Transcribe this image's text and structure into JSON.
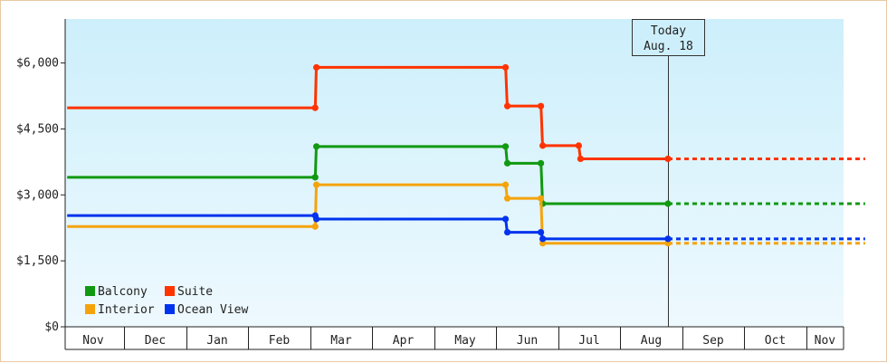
{
  "chart_data": {
    "type": "line",
    "step": true,
    "title": "",
    "xlabel": "",
    "ylabel": "",
    "y_ticks": [
      0,
      1500,
      3000,
      4500,
      6000
    ],
    "y_tick_labels": [
      "$0",
      "$1,500",
      "$3,000",
      "$4,500",
      "$6,000"
    ],
    "ylim": [
      0,
      7000
    ],
    "x_ticks": [
      "Nov",
      "Dec",
      "Jan",
      "Feb",
      "Mar",
      "Apr",
      "May",
      "Jun",
      "Jul",
      "Aug",
      "Sep",
      "Oct",
      "Nov"
    ],
    "today": {
      "line1": "Today",
      "line2": "Aug. 18",
      "x": 9.27
    },
    "legend_position": "bottom-left",
    "background": {
      "top": "#cdeffb",
      "bottom": "#eef9fe"
    },
    "series": [
      {
        "name": "Balcony",
        "color": "#119911",
        "points": [
          [
            -0.42,
            3400
          ],
          [
            3.58,
            3400
          ],
          [
            3.6,
            4100
          ],
          [
            6.65,
            4100
          ],
          [
            6.68,
            3720
          ],
          [
            7.22,
            3720
          ],
          [
            7.25,
            2800
          ],
          [
            9.27,
            2800
          ]
        ],
        "forecast": [
          [
            9.27,
            2800
          ],
          [
            12.45,
            2800
          ]
        ]
      },
      {
        "name": "Suite",
        "color": "#ff3300",
        "points": [
          [
            -0.42,
            4980
          ],
          [
            3.58,
            4980
          ],
          [
            3.6,
            5900
          ],
          [
            6.65,
            5900
          ],
          [
            6.68,
            5020
          ],
          [
            7.22,
            5020
          ],
          [
            7.25,
            4120
          ],
          [
            7.83,
            4120
          ],
          [
            7.86,
            3820
          ],
          [
            9.27,
            3820
          ]
        ],
        "forecast": [
          [
            9.27,
            3820
          ],
          [
            12.45,
            3820
          ]
        ]
      },
      {
        "name": "Interior",
        "color": "#f5a30c",
        "points": [
          [
            -0.42,
            2280
          ],
          [
            3.58,
            2280
          ],
          [
            3.6,
            3230
          ],
          [
            6.65,
            3230
          ],
          [
            6.68,
            2920
          ],
          [
            7.22,
            2920
          ],
          [
            7.25,
            1900
          ],
          [
            9.27,
            1900
          ]
        ],
        "forecast": [
          [
            9.27,
            1900
          ],
          [
            12.45,
            1900
          ]
        ]
      },
      {
        "name": "Ocean View",
        "color": "#0033ee",
        "points": [
          [
            -0.42,
            2530
          ],
          [
            3.58,
            2530
          ],
          [
            3.6,
            2450
          ],
          [
            6.65,
            2450
          ],
          [
            6.68,
            2150
          ],
          [
            7.22,
            2150
          ],
          [
            7.25,
            2000
          ],
          [
            9.27,
            2000
          ]
        ],
        "forecast": [
          [
            9.27,
            2000
          ],
          [
            12.45,
            2000
          ]
        ]
      }
    ]
  }
}
